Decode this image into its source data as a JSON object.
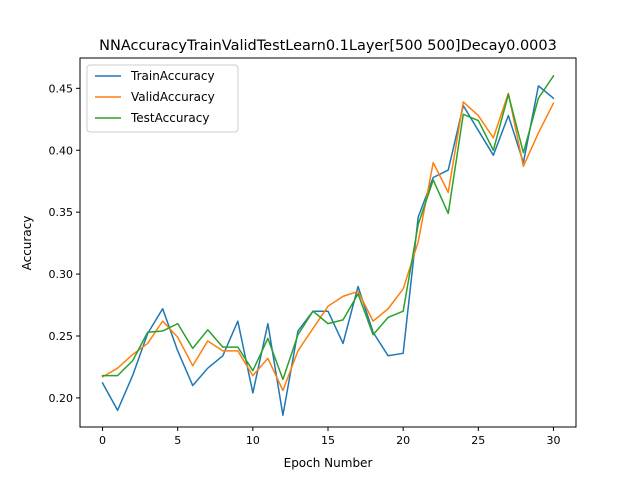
{
  "chart_data": {
    "type": "line",
    "title": "NNAccuracyTrainValidTestLearn0.1Layer[500 500]Decay0.0003",
    "xlabel": "Epoch Number",
    "ylabel": "Accuracy",
    "xlim": [
      -1.5,
      31.5
    ],
    "ylim": [
      0.1765,
      0.4745
    ],
    "x_ticks": [
      0,
      5,
      10,
      15,
      20,
      25,
      30
    ],
    "x_tick_labels": [
      "0",
      "5",
      "10",
      "15",
      "20",
      "25",
      "30"
    ],
    "y_ticks": [
      0.2,
      0.25,
      0.3,
      0.35,
      0.4,
      0.45
    ],
    "y_tick_labels": [
      "0.20",
      "0.25",
      "0.30",
      "0.35",
      "0.40",
      "0.45"
    ],
    "grid": false,
    "legend_position": "top-left",
    "x": [
      0,
      1,
      2,
      3,
      4,
      5,
      6,
      7,
      8,
      9,
      10,
      11,
      12,
      13,
      14,
      15,
      16,
      17,
      18,
      19,
      20,
      21,
      22,
      23,
      24,
      25,
      26,
      27,
      28,
      29,
      30
    ],
    "series": [
      {
        "name": "TrainAccuracy",
        "color": "#1f77b4",
        "values": [
          0.212,
          0.19,
          0.218,
          0.252,
          0.272,
          0.238,
          0.21,
          0.224,
          0.234,
          0.262,
          0.204,
          0.26,
          0.186,
          0.254,
          0.27,
          0.27,
          0.244,
          0.29,
          0.253,
          0.234,
          0.236,
          0.346,
          0.378,
          0.384,
          0.436,
          0.416,
          0.396,
          0.428,
          0.39,
          0.452,
          0.442
        ]
      },
      {
        "name": "ValidAccuracy",
        "color": "#ff7f0e",
        "values": [
          0.217,
          0.224,
          0.235,
          0.244,
          0.262,
          0.249,
          0.226,
          0.246,
          0.238,
          0.238,
          0.218,
          0.232,
          0.206,
          0.238,
          0.256,
          0.274,
          0.282,
          0.286,
          0.262,
          0.272,
          0.288,
          0.326,
          0.39,
          0.366,
          0.439,
          0.428,
          0.41,
          0.446,
          0.387,
          0.414,
          0.438
        ]
      },
      {
        "name": "TestAccuracy",
        "color": "#2ca02c",
        "values": [
          0.218,
          0.218,
          0.23,
          0.253,
          0.254,
          0.26,
          0.24,
          0.255,
          0.241,
          0.241,
          0.222,
          0.248,
          0.215,
          0.251,
          0.27,
          0.26,
          0.263,
          0.284,
          0.251,
          0.265,
          0.27,
          0.34,
          0.376,
          0.349,
          0.429,
          0.424,
          0.4,
          0.445,
          0.398,
          0.442,
          0.46
        ]
      }
    ]
  }
}
